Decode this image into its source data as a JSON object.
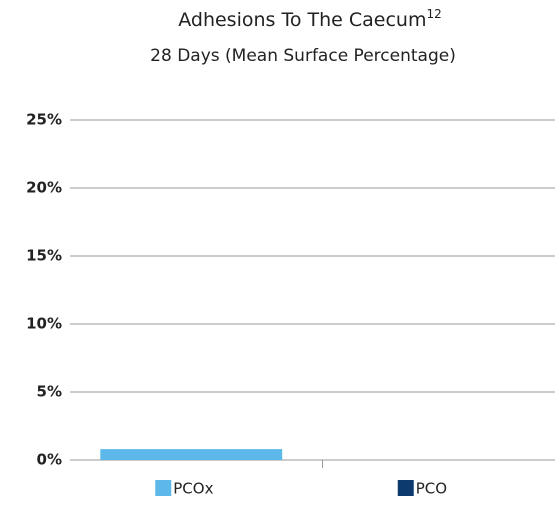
{
  "chart_data": {
    "type": "bar",
    "title": "Adhesions To The Caecum",
    "title_superscript": "12",
    "subtitle": "28 Days (Mean Surface Percentage)",
    "categories": [
      "PCOx",
      "PCO"
    ],
    "values": [
      0.8,
      0
    ],
    "colors": [
      "#5bb8e8",
      "#0d3a6e"
    ],
    "ylim": [
      0,
      25
    ],
    "yticks": [
      {
        "value": 0,
        "label": "0%"
      },
      {
        "value": 5,
        "label": "5%"
      },
      {
        "value": 10,
        "label": "10%"
      },
      {
        "value": 15,
        "label": "15%"
      },
      {
        "value": 20,
        "label": "20%"
      },
      {
        "value": 25,
        "label": "25%"
      }
    ],
    "grid": true
  }
}
